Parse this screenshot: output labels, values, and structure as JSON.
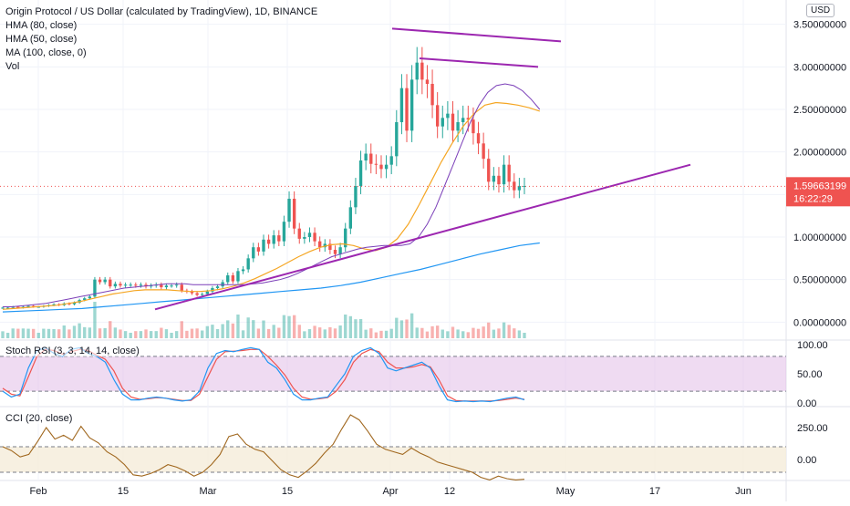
{
  "header": {
    "title": "Origin Protocol / US Dollar (calculated by TradingView), 1D, BINANCE",
    "indicators": [
      "HMA (80, close)",
      "HMA (50, close)",
      "MA (100, close, 0)",
      "Vol"
    ],
    "currency_badge": "USD"
  },
  "price_tag": {
    "value": "1.59663199",
    "countdown": "16:22:29"
  },
  "panes": {
    "rsi_label": "Stoch RSI (3, 3, 14, 14, close)",
    "cci_label": "CCI (20, close)"
  },
  "colors": {
    "up": "#26a69a",
    "down": "#ef5350",
    "hma80": "#7b3fb8",
    "hma50": "#f5a623",
    "ma100": "#2196f3",
    "trendline": "#9c27b0",
    "stoch_k": "#2196f3",
    "stoch_d": "#ef5350",
    "cci": "#a0671e"
  },
  "chart_data": [
    {
      "type": "candlestick",
      "title": "Origin Protocol / US Dollar (calculated by TradingView), 1D, BINANCE",
      "x_ticks": [
        "Feb",
        "15",
        "Mar",
        "15",
        "Apr",
        "12",
        "May",
        "17",
        "Jun"
      ],
      "y_ticks": [
        "3.50000000",
        "3.00000000",
        "2.50000000",
        "2.00000000",
        "1.50000000",
        "1.00000000",
        "0.50000000",
        "0.00000000"
      ],
      "ylim": [
        -0.2,
        3.7
      ],
      "start_date": "2021-01-20",
      "last_price": 1.59663199,
      "close": [
        0.17,
        0.17,
        0.18,
        0.17,
        0.18,
        0.19,
        0.18,
        0.18,
        0.19,
        0.2,
        0.21,
        0.2,
        0.22,
        0.21,
        0.23,
        0.26,
        0.28,
        0.3,
        0.5,
        0.47,
        0.5,
        0.42,
        0.45,
        0.43,
        0.44,
        0.44,
        0.43,
        0.44,
        0.42,
        0.43,
        0.44,
        0.41,
        0.43,
        0.43,
        0.44,
        0.37,
        0.36,
        0.34,
        0.32,
        0.33,
        0.36,
        0.4,
        0.42,
        0.47,
        0.55,
        0.48,
        0.6,
        0.62,
        0.75,
        0.88,
        0.83,
        0.97,
        0.92,
        1.02,
        0.95,
        1.18,
        1.45,
        1.1,
        0.98,
        1.0,
        1.05,
        0.95,
        0.88,
        0.92,
        0.85,
        0.8,
        0.88,
        1.1,
        1.35,
        1.6,
        1.9,
        1.98,
        1.86,
        1.85,
        1.8,
        1.85,
        1.95,
        2.35,
        2.75,
        2.25,
        2.85,
        3.05,
        2.85,
        2.8,
        2.55,
        2.3,
        2.4,
        2.45,
        2.25,
        2.35,
        2.4,
        2.38,
        2.22,
        2.1,
        1.92,
        1.65,
        1.72,
        1.62,
        1.85,
        1.65,
        1.55,
        1.6,
        1.6
      ],
      "volume_note": "relative volume bars shown under price",
      "hma80": [
        0.18,
        0.18,
        0.19,
        0.2,
        0.21,
        0.22,
        0.24,
        0.26,
        0.28,
        0.3,
        0.32,
        0.34,
        0.36,
        0.38,
        0.4,
        0.41,
        0.42,
        0.43,
        0.44,
        0.45,
        0.45,
        0.45,
        0.44,
        0.44,
        0.44,
        0.44,
        0.44,
        0.44,
        0.44,
        0.45,
        0.46,
        0.48,
        0.5,
        0.53,
        0.57,
        0.62,
        0.67,
        0.72,
        0.77,
        0.8,
        0.83,
        0.86,
        0.88,
        0.89,
        0.9,
        0.9,
        0.9,
        0.92,
        1.0,
        1.15,
        1.35,
        1.6,
        1.85,
        2.1,
        2.35,
        2.55,
        2.7,
        2.78,
        2.8,
        2.78,
        2.72,
        2.62,
        2.5
      ],
      "hma50": [
        0.15,
        0.16,
        0.17,
        0.18,
        0.19,
        0.2,
        0.22,
        0.24,
        0.27,
        0.3,
        0.33,
        0.35,
        0.37,
        0.38,
        0.38,
        0.38,
        0.37,
        0.36,
        0.36,
        0.37,
        0.39,
        0.42,
        0.46,
        0.51,
        0.57,
        0.63,
        0.7,
        0.77,
        0.83,
        0.88,
        0.91,
        0.92,
        0.9,
        0.86,
        0.84,
        0.88,
        0.98,
        1.15,
        1.38,
        1.63,
        1.88,
        2.1,
        2.3,
        2.45,
        2.55,
        2.58,
        2.57,
        2.55,
        2.52,
        2.48
      ],
      "ma100": [
        0.12,
        0.13,
        0.14,
        0.15,
        0.16,
        0.18,
        0.2,
        0.22,
        0.24,
        0.26,
        0.28,
        0.3,
        0.32,
        0.34,
        0.36,
        0.38,
        0.4,
        0.43,
        0.47,
        0.52,
        0.57,
        0.62,
        0.68,
        0.74,
        0.8,
        0.85,
        0.9,
        0.93
      ],
      "trendline_support": [
        [
          0.15,
          0.35
        ],
        [
          1.85,
          1.82
        ]
      ],
      "channel_upper": [
        [
          3.45,
          1.15
        ],
        [
          3.3,
          1.2
        ]
      ],
      "channel_lower": [
        [
          3.1,
          0.85
        ],
        [
          3.0,
          0.9
        ]
      ]
    },
    {
      "type": "line",
      "title": "Stoch RSI (3, 3, 14, 14, close)",
      "y_ticks": [
        "100.00",
        "50.00",
        "0.00"
      ],
      "ylim": [
        -5,
        105
      ],
      "bands": [
        20,
        80
      ],
      "series": [
        {
          "name": "K",
          "values": [
            20,
            10,
            15,
            60,
            90,
            95,
            85,
            80,
            92,
            95,
            85,
            80,
            70,
            40,
            15,
            5,
            5,
            8,
            10,
            8,
            5,
            3,
            5,
            20,
            60,
            85,
            90,
            88,
            92,
            95,
            92,
            70,
            60,
            40,
            15,
            5,
            5,
            8,
            10,
            30,
            50,
            80,
            90,
            95,
            85,
            60,
            55,
            60,
            65,
            70,
            60,
            30,
            5,
            2,
            3,
            2,
            3,
            2,
            5,
            8,
            10,
            5
          ]
        },
        {
          "name": "D",
          "values": [
            25,
            15,
            12,
            45,
            80,
            92,
            90,
            84,
            88,
            92,
            90,
            82,
            75,
            55,
            25,
            10,
            6,
            7,
            9,
            8,
            6,
            4,
            4,
            15,
            45,
            75,
            88,
            89,
            90,
            92,
            92,
            80,
            65,
            48,
            25,
            10,
            6,
            7,
            9,
            20,
            40,
            70,
            85,
            92,
            88,
            70,
            60,
            60,
            62,
            66,
            62,
            40,
            12,
            4,
            3,
            3,
            3,
            3,
            4,
            6,
            8,
            6
          ]
        }
      ]
    },
    {
      "type": "line",
      "title": "CCI (20, close)",
      "y_ticks": [
        "250.00",
        "0.00"
      ],
      "ylim": [
        -150,
        400
      ],
      "bands": [
        -100,
        100
      ],
      "series": [
        {
          "name": "CCI",
          "values": [
            100,
            70,
            20,
            40,
            140,
            250,
            160,
            190,
            150,
            260,
            170,
            130,
            60,
            20,
            -40,
            -120,
            -130,
            -110,
            -80,
            -40,
            -60,
            -90,
            -130,
            -100,
            -40,
            40,
            180,
            200,
            120,
            80,
            60,
            -10,
            -80,
            -120,
            -140,
            -90,
            -30,
            50,
            120,
            240,
            350,
            310,
            220,
            120,
            80,
            60,
            40,
            90,
            50,
            20,
            -20,
            -40,
            -60,
            -80,
            -100,
            -140,
            -160,
            -130,
            -150,
            -160,
            -155
          ]
        }
      ]
    }
  ]
}
